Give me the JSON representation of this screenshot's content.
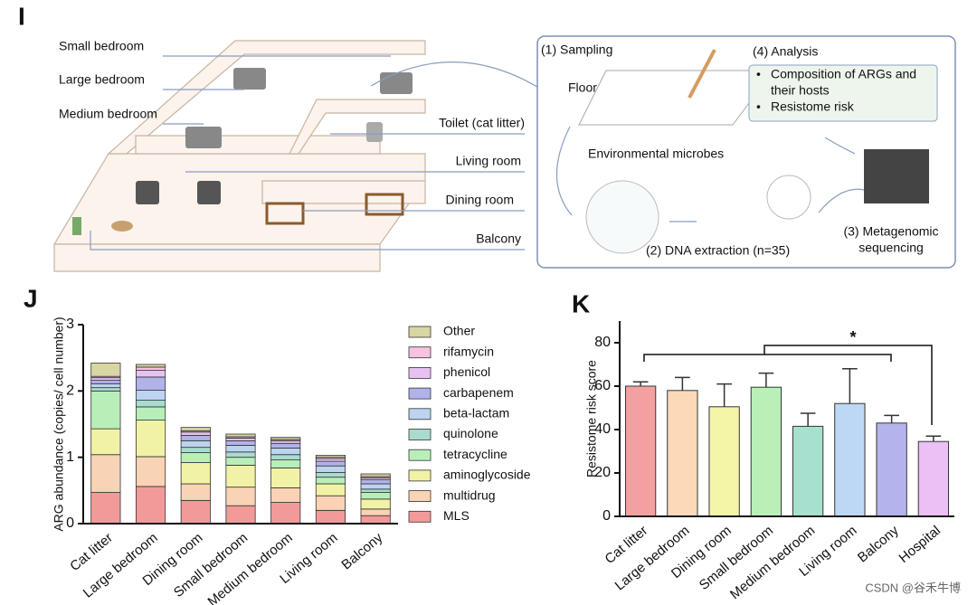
{
  "diagram": {
    "panel_label": "I",
    "rooms": [
      "Small bedroom",
      "Large bedroom",
      "Medium bedroom",
      "Toilet (cat litter)",
      "Living room",
      "Dining room",
      "Balcony"
    ],
    "steps": {
      "sampling": "(1) Sampling",
      "floor": "Floor",
      "microbes": "Environmental microbes",
      "extraction": "(2) DNA extraction (n=35)",
      "sequencing": [
        "(3) Metagenomic",
        "sequencing"
      ],
      "analysis": "(4) Analysis",
      "bullets": [
        "Composition of ARGs and",
        "their hosts",
        "Resistome risk"
      ]
    }
  },
  "chart_data": [
    {
      "type": "bar",
      "stacked": true,
      "panel_label": "J",
      "y_label": "ARG abundance (copies/ cell number)",
      "categories": [
        "Cat litter",
        "Large bedroom",
        "Dining room",
        "Small bedroom",
        "Medium bedroom",
        "Living room",
        "Balcony"
      ],
      "ylim": [
        0,
        3
      ],
      "yticks": [
        0,
        1,
        2,
        3
      ],
      "legend": "right",
      "series": [
        {
          "name": "MLS",
          "color": "#f29a9a",
          "values": [
            0.47,
            0.56,
            0.35,
            0.27,
            0.32,
            0.2,
            0.12
          ]
        },
        {
          "name": "multidrug",
          "color": "#f9d3b5",
          "values": [
            0.57,
            0.45,
            0.25,
            0.28,
            0.22,
            0.22,
            0.1
          ]
        },
        {
          "name": "aminoglycoside",
          "color": "#f2f2a6",
          "values": [
            0.39,
            0.55,
            0.32,
            0.33,
            0.3,
            0.18,
            0.15
          ]
        },
        {
          "name": "tetracycline",
          "color": "#b8efb8",
          "values": [
            0.57,
            0.2,
            0.15,
            0.12,
            0.12,
            0.1,
            0.1
          ]
        },
        {
          "name": "quinolone",
          "color": "#a8dccf",
          "values": [
            0.05,
            0.1,
            0.08,
            0.08,
            0.08,
            0.07,
            0.05
          ]
        },
        {
          "name": "beta-lactam",
          "color": "#bcd4f0",
          "values": [
            0.06,
            0.15,
            0.1,
            0.1,
            0.1,
            0.1,
            0.08
          ]
        },
        {
          "name": "carbapenem",
          "color": "#b2b2ea",
          "values": [
            0.05,
            0.2,
            0.08,
            0.07,
            0.07,
            0.07,
            0.06
          ]
        },
        {
          "name": "phenicol",
          "color": "#e6c2f2",
          "values": [
            0.04,
            0.1,
            0.05,
            0.04,
            0.04,
            0.04,
            0.03
          ]
        },
        {
          "name": "rifamycin",
          "color": "#f6c2e0",
          "values": [
            0.02,
            0.05,
            0.02,
            0.02,
            0.02,
            0.02,
            0.02
          ]
        },
        {
          "name": "Other",
          "color": "#d8d6a2",
          "values": [
            0.2,
            0.04,
            0.05,
            0.04,
            0.03,
            0.03,
            0.04
          ]
        }
      ]
    },
    {
      "type": "bar",
      "panel_label": "K",
      "y_label": "Resistome risk score",
      "categories": [
        "Cat litter",
        "Large bedroom",
        "Dining room",
        "Small bedroom",
        "Medium bedroom",
        "Living room",
        "Balcony",
        "Hospital"
      ],
      "values": [
        60,
        58,
        50.5,
        59.5,
        41.5,
        52,
        43,
        34.5
      ],
      "errors": [
        2,
        6,
        10.5,
        6.5,
        6,
        16,
        3.5,
        2.5
      ],
      "colors": [
        "#f4a0a0",
        "#fcd9b8",
        "#f5f5a8",
        "#b8f0b8",
        "#a8e0d0",
        "#bcd8f4",
        "#b4b4ec",
        "#ecc0f4"
      ],
      "ylim": [
        0,
        90
      ],
      "yticks": [
        0,
        20,
        40,
        60,
        80
      ],
      "annotation": "*"
    }
  ],
  "watermark": "CSDN @谷禾牛博"
}
